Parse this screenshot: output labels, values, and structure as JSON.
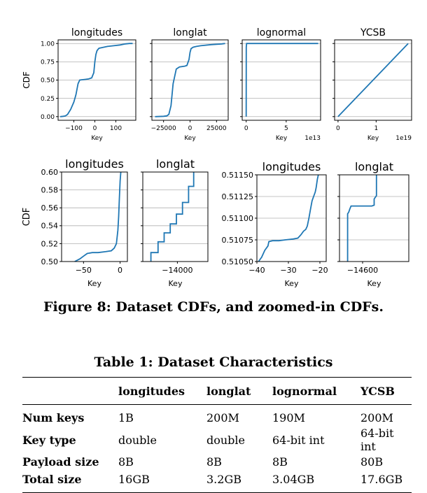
{
  "figure_caption": "Figure 8: Dataset CDFs, and zoomed-in CDFs.",
  "chart_data": [
    {
      "type": "line",
      "title": "longitudes",
      "xlabel": "Key",
      "ylabel": "CDF",
      "xlim": [
        -175,
        195
      ],
      "ylim": [
        -0.05,
        1.05
      ],
      "xticks": [
        -100,
        0,
        100
      ],
      "xticklabels": [
        "−100",
        "0",
        "100"
      ],
      "yticks": [
        0.0,
        0.25,
        0.5,
        0.75,
        1.0
      ],
      "yticklabels": [
        "0.00",
        "0.25",
        "0.50",
        "0.75",
        "1.00"
      ],
      "grid": "horizontal",
      "series": [
        {
          "x": [
            -165,
            -150,
            -140,
            -130,
            -115,
            -100,
            -90,
            -80,
            -72,
            -60,
            -45,
            -30,
            -15,
            -5,
            0,
            5,
            10,
            15,
            20,
            35,
            60,
            90,
            120,
            145,
            165,
            180
          ],
          "y": [
            0.0,
            0.005,
            0.01,
            0.03,
            0.1,
            0.2,
            0.3,
            0.45,
            0.5,
            0.505,
            0.51,
            0.515,
            0.53,
            0.6,
            0.75,
            0.85,
            0.9,
            0.92,
            0.935,
            0.945,
            0.96,
            0.97,
            0.98,
            0.995,
            1.0,
            1.0
          ]
        }
      ]
    },
    {
      "type": "line",
      "title": "longlat",
      "xlabel": "Key",
      "ylabel": "",
      "xlim": [
        -36000,
        36000
      ],
      "ylim": [
        -0.05,
        1.05
      ],
      "xticks": [
        -25000,
        0,
        25000
      ],
      "xticklabels": [
        "−25000",
        "0",
        "25000"
      ],
      "yticks": [
        0.0,
        0.25,
        0.5,
        0.75,
        1.0
      ],
      "grid": "horizontal",
      "series": [
        {
          "x": [
            -33000,
            -25000,
            -22000,
            -20000,
            -18000,
            -16000,
            -13000,
            -10000,
            -5000,
            -3000,
            -1000,
            0,
            1000,
            3000,
            6000,
            10000,
            20000,
            30000,
            33000
          ],
          "y": [
            0.0,
            0.005,
            0.01,
            0.03,
            0.15,
            0.45,
            0.65,
            0.68,
            0.69,
            0.7,
            0.78,
            0.88,
            0.93,
            0.95,
            0.96,
            0.97,
            0.985,
            0.995,
            1.0
          ]
        }
      ]
    },
    {
      "type": "line",
      "title": "lognormal",
      "xlabel": "Key",
      "ylabel": "",
      "xlim": [
        -0.5,
        9.3
      ],
      "ylim": [
        -0.05,
        1.05
      ],
      "xticks": [
        0,
        5
      ],
      "xticklabels": [
        "0",
        "5"
      ],
      "x_offset_label": "1e13",
      "yticks": [
        0.0,
        0.25,
        0.5,
        0.75,
        1.0
      ],
      "grid": "horizontal",
      "series": [
        {
          "x": [
            0,
            0.01,
            0.05,
            9.0
          ],
          "y": [
            0.0,
            0.95,
            1.0,
            1.0
          ]
        }
      ]
    },
    {
      "type": "line",
      "title": "YCSB",
      "xlabel": "Key",
      "ylabel": "",
      "xlim": [
        -0.09,
        1.93
      ],
      "ylim": [
        -0.05,
        1.05
      ],
      "xticks": [
        0,
        1
      ],
      "xticklabels": [
        "0",
        "1"
      ],
      "x_offset_label": "1e19",
      "yticks": [
        0.0,
        0.25,
        0.5,
        0.75,
        1.0
      ],
      "grid": "horizontal",
      "series": [
        {
          "x": [
            0,
            1.84
          ],
          "y": [
            0.0,
            1.0
          ]
        }
      ]
    },
    {
      "type": "line",
      "title": "longitudes",
      "xlabel": "Key",
      "ylabel": "CDF",
      "xlim": [
        -80,
        10
      ],
      "ylim": [
        0.5,
        0.6
      ],
      "xticks": [
        -50,
        0
      ],
      "xticklabels": [
        "−50",
        "0"
      ],
      "yticks": [
        0.5,
        0.52,
        0.54,
        0.56,
        0.58,
        0.6
      ],
      "yticklabels": [
        "0.50",
        "0.52",
        "0.54",
        "0.56",
        "0.58",
        "0.60"
      ],
      "grid": "horizontal",
      "series": [
        {
          "x": [
            -62,
            -55,
            -50,
            -45,
            -38,
            -30,
            -20,
            -12,
            -8,
            -5,
            -3,
            -2,
            -1,
            0,
            1
          ],
          "y": [
            0.5,
            0.503,
            0.506,
            0.509,
            0.51,
            0.51,
            0.511,
            0.512,
            0.515,
            0.52,
            0.535,
            0.55,
            0.57,
            0.59,
            0.6
          ]
        }
      ]
    },
    {
      "type": "line",
      "title": "longlat",
      "xlabel": "Key",
      "ylabel": "",
      "xlim": [
        -14170,
        -13850
      ],
      "ylim": [
        0.5,
        0.6
      ],
      "xticks": [
        -14000
      ],
      "xticklabels": [
        "−14000"
      ],
      "yticks": [
        0.5,
        0.52,
        0.54,
        0.56,
        0.58,
        0.6
      ],
      "grid": "horizontal",
      "series": [
        {
          "x": [
            -14130,
            -14130,
            -14095,
            -14095,
            -14065,
            -14065,
            -14035,
            -14035,
            -14005,
            -14005,
            -13975,
            -13975,
            -13945,
            -13945,
            -13920,
            -13920
          ],
          "y": [
            0.5,
            0.51,
            0.51,
            0.522,
            0.522,
            0.532,
            0.532,
            0.542,
            0.542,
            0.553,
            0.553,
            0.566,
            0.566,
            0.584,
            0.584,
            0.6
          ]
        }
      ]
    },
    {
      "type": "line",
      "title": "longitudes",
      "xlabel": "Key",
      "ylabel": "",
      "xlim": [
        -40,
        -18
      ],
      "ylim": [
        0.5105,
        0.5115
      ],
      "xticks": [
        -40,
        -30,
        -20
      ],
      "xticklabels": [
        "−40",
        "−30",
        "−20"
      ],
      "yticks": [
        0.5105,
        0.51075,
        0.511,
        0.51125,
        0.5115
      ],
      "yticklabels": [
        "0.51050",
        "0.51075",
        "0.51100",
        "0.51125",
        "0.51150"
      ],
      "grid": "horizontal",
      "series": [
        {
          "x": [
            -39.5,
            -38.5,
            -37.5,
            -36.5,
            -36.2,
            -35,
            -33,
            -31,
            -28.5,
            -27,
            -26,
            -25.2,
            -24.5,
            -24,
            -23.5,
            -23,
            -22.5,
            -22,
            -21.5,
            -21.2,
            -21,
            -20.8,
            -20.5
          ],
          "y": [
            0.5105,
            0.51055,
            0.51063,
            0.51068,
            0.51073,
            0.51074,
            0.51074,
            0.51075,
            0.51076,
            0.51077,
            0.51081,
            0.51085,
            0.51087,
            0.51091,
            0.511,
            0.5111,
            0.5112,
            0.51125,
            0.5113,
            0.51135,
            0.5114,
            0.51145,
            0.5115
          ]
        }
      ]
    },
    {
      "type": "line",
      "title": "longlat",
      "xlabel": "Key",
      "ylabel": "",
      "xlim": [
        -14700,
        -14400
      ],
      "ylim": [
        0.5105,
        0.5115
      ],
      "xticks": [
        -14600
      ],
      "xticklabels": [
        "−14600"
      ],
      "yticks": [
        0.5105,
        0.51075,
        0.511,
        0.51125,
        0.5115
      ],
      "grid": "horizontal",
      "series": [
        {
          "x": [
            -14665,
            -14665,
            -14660,
            -14655,
            -14650,
            -14640,
            -14620,
            -14600,
            -14580,
            -14560,
            -14550,
            -14550,
            -14545,
            -14540,
            -14540
          ],
          "y": [
            0.5105,
            0.51105,
            0.51107,
            0.51111,
            0.51114,
            0.51114,
            0.51114,
            0.51114,
            0.51114,
            0.51114,
            0.51115,
            0.51122,
            0.51124,
            0.51126,
            0.5115
          ]
        }
      ]
    }
  ],
  "table": {
    "caption": "Table 1: Dataset Characteristics",
    "columns": [
      "",
      "longitudes",
      "longlat",
      "lognormal",
      "YCSB"
    ],
    "rows": [
      [
        "Num keys",
        "1B",
        "200M",
        "190M",
        "200M"
      ],
      [
        "Key type",
        "double",
        "double",
        "64-bit int",
        "64-bit int"
      ],
      [
        "Payload size",
        "8B",
        "8B",
        "8B",
        "80B"
      ],
      [
        "Total size",
        "16GB",
        "3.2GB",
        "3.04GB",
        "17.6GB"
      ]
    ]
  },
  "colors": {
    "line": "#1f77b4",
    "grid": "#b0b0b0",
    "axis": "#000000"
  }
}
